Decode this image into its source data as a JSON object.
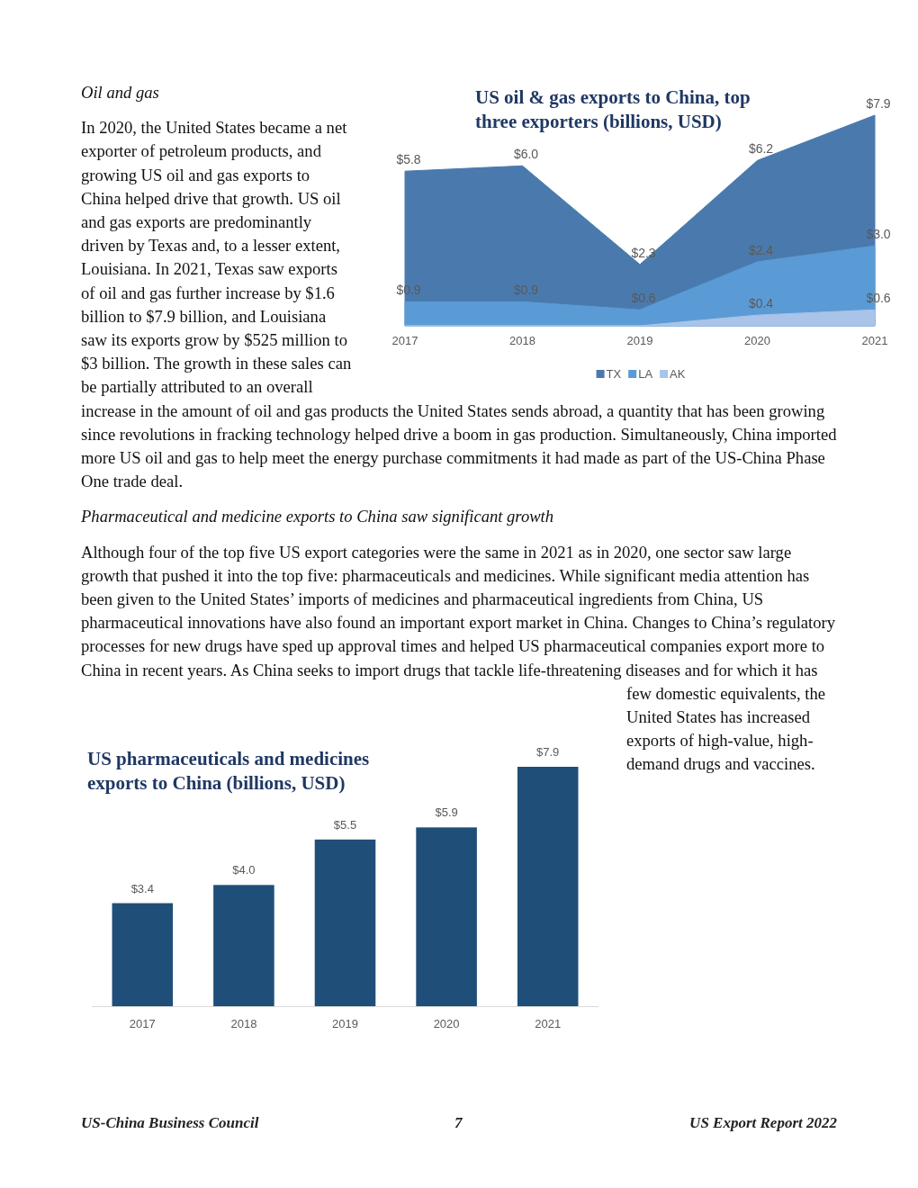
{
  "chart_data": [
    {
      "type": "other",
      "annotations": [
        "Oil and gas",
        "In 2020, the United States became a net exporter of petroleum products, and growing US oil and gas exports to China helped drive that growth. US oil and gas exports are predominantly driven by Texas and, to a lesser extent, Louisiana. In 2021, Texas saw exports of oil and gas further increase by $1.6 billion to $7.9 billion, and Louisiana saw its exports grow by $525 million to $3 billion. The growth in these sales can be partially attributed to an overall increase in the amount of oil and gas products the United States sends abroad, a quantity that has been growing since revolutions in fracking technology helped drive a boom in gas production. Simultaneously, China imported more US oil and gas to help meet the energy purchase commitments it had made as part of the US-China Phase One trade deal.",
        "Pharmaceutical and medicine exports to China saw significant growth",
        "Although four of the top five US export categories were the same in 2021 as in 2020, one sector saw large growth that pushed it into the top five: pharmaceuticals and medicines. While significant media attention has been given to the United States’ imports of medicines and pharmaceutical ingredients from China, US pharmaceutical innovations have also found an important export market in China. Changes to China’s regulatory processes for new drugs have sped up approval times and helped US pharmaceutical companies export more to China in recent years. As China seeks to import drugs that tackle life-threatening diseases and for which it has few domestic equivalents, the United States has increased exports of high-value, high-demand drugs and vaccines.",
        "US-China Business Council",
        "7",
        "US Export Report 2022"
      ]
    },
    {
      "type": "area",
      "title": "US oil & gas exports to China, top three exporters (billions, USD)",
      "categories": [
        "2017",
        "2018",
        "2019",
        "2020",
        "2021"
      ],
      "legend": "bottom",
      "series": [
        {
          "name": "TX",
          "color": "#4a7aad",
          "values": [
            5.8,
            6.0,
            2.3,
            6.2,
            7.9
          ],
          "value_labels": [
            "$5.8",
            "$6.0",
            "$2.3",
            "$6.2",
            "$7.9"
          ]
        },
        {
          "name": "LA",
          "color": "#5b9bd5",
          "values": [
            0.9,
            0.9,
            0.6,
            2.4,
            3.0
          ],
          "value_labels": [
            "$0.9",
            "$0.9",
            "$0.6",
            "$2.4",
            "$3.0"
          ]
        },
        {
          "name": "AK",
          "color": "#a9c4e8",
          "values": [
            0,
            0,
            0,
            0.4,
            0.6
          ],
          "value_labels": [
            null,
            null,
            null,
            "$0.4",
            "$0.6"
          ]
        }
      ]
    },
    {
      "type": "bar",
      "title": "US pharmaceuticals and medicines exports to China (billions, USD)",
      "categories": [
        "2017",
        "2018",
        "2019",
        "2020",
        "2021"
      ],
      "values": [
        3.4,
        4.0,
        5.5,
        5.9,
        7.9
      ],
      "value_labels": [
        "$3.4",
        "$4.0",
        "$5.5",
        "$5.9",
        "$7.9"
      ],
      "color": "#1f4e79"
    }
  ]
}
